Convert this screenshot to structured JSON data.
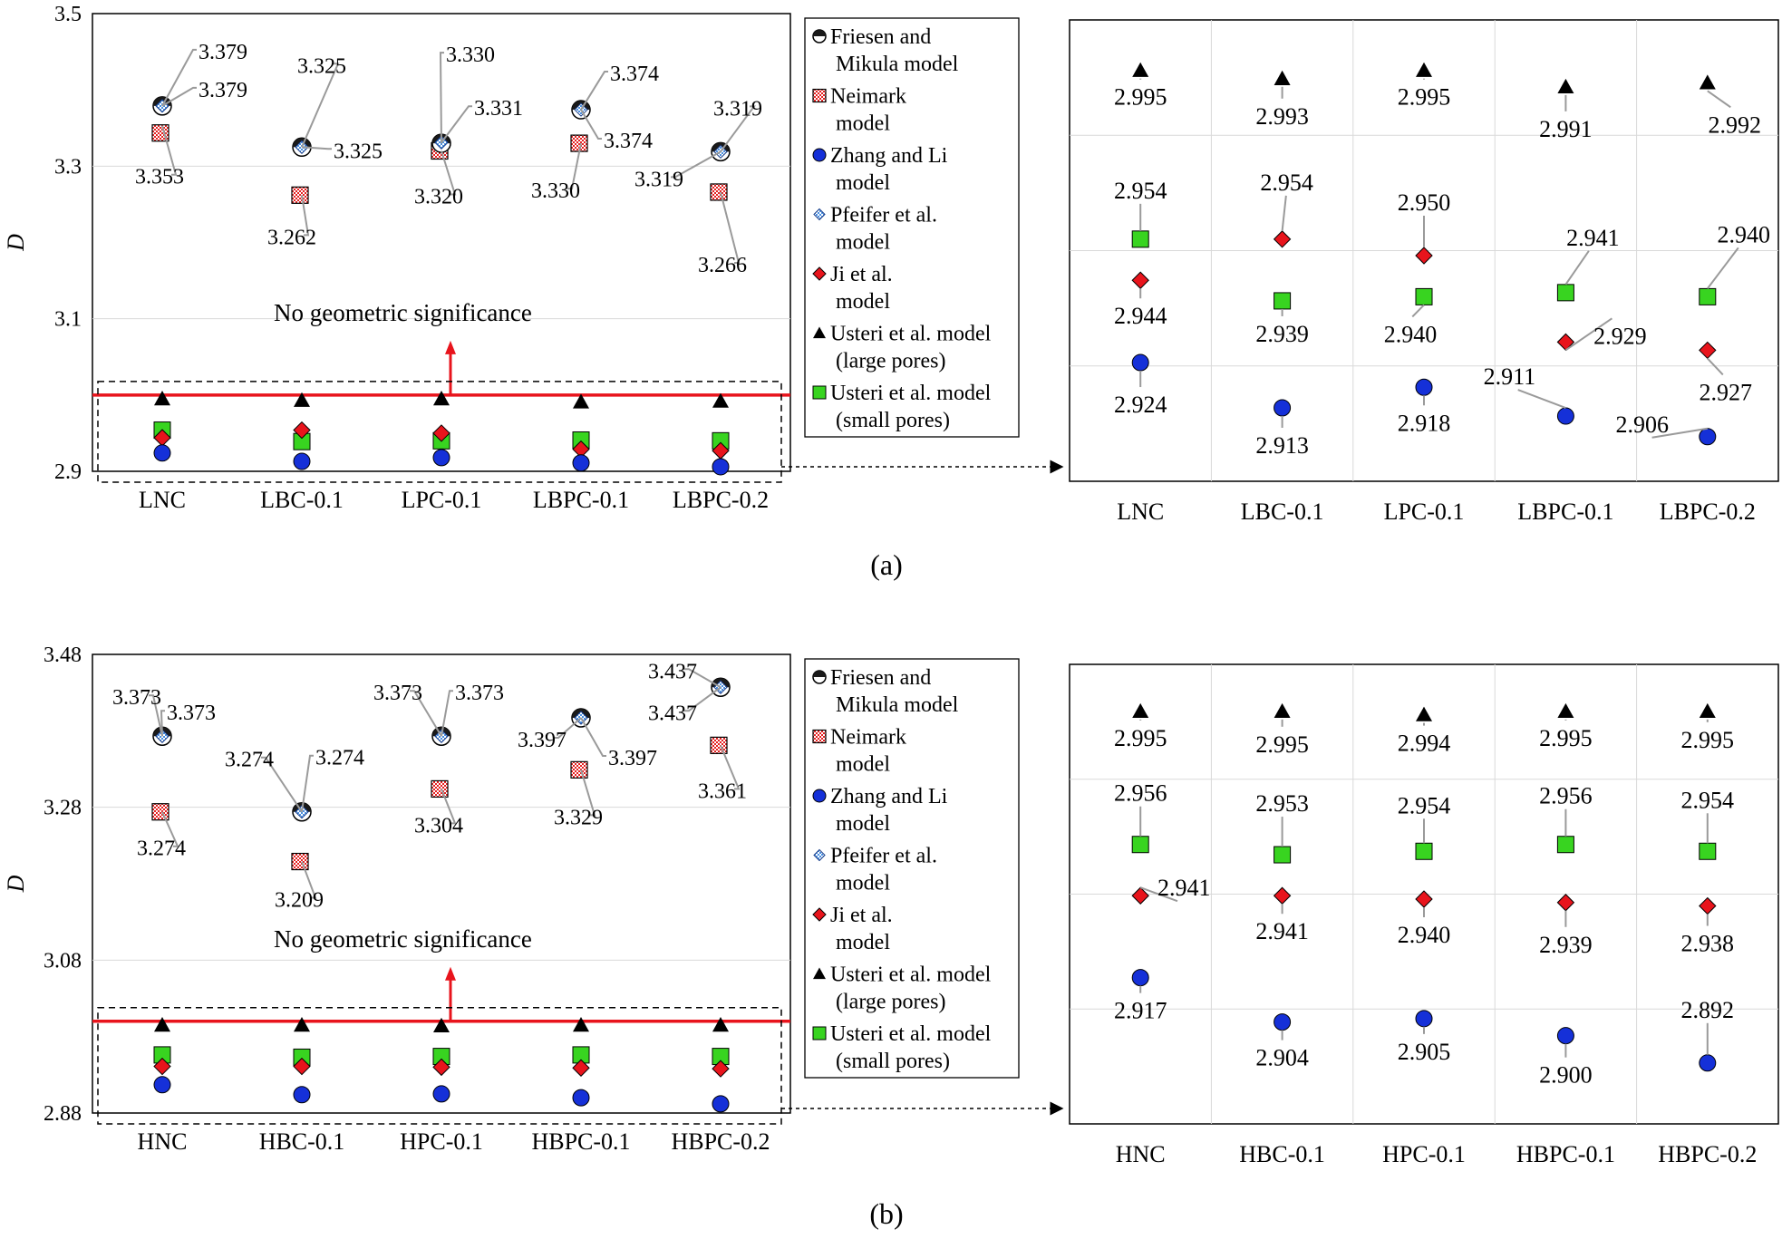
{
  "figure": {
    "marker_colors": {
      "friesen": "#1a1a1a",
      "neimark": "#e62020",
      "zhang": "#1530d8",
      "pfeifer": "#4a90e2",
      "ji": "#e8141c",
      "usteri_large": "#000000",
      "usteri_small": "#38d420",
      "threshold_line": "#e8141c",
      "leader_line": "#9a9a9a"
    },
    "legend": [
      {
        "key": "friesen",
        "icon": "half-filled-circle-icon",
        "lines": [
          "Friesen and",
          "Mikula model"
        ]
      },
      {
        "key": "neimark",
        "icon": "checkered-square-icon",
        "lines": [
          "Neimark",
          "model"
        ]
      },
      {
        "key": "zhang",
        "icon": "blue-circle-icon",
        "lines": [
          "Zhang and Li",
          "model"
        ]
      },
      {
        "key": "pfeifer",
        "icon": "checkered-diamond-icon",
        "lines": [
          "Pfeifer et al.",
          "model"
        ]
      },
      {
        "key": "ji",
        "icon": "red-diamond-icon",
        "lines": [
          "Ji et al.",
          "model"
        ]
      },
      {
        "key": "usteri_large",
        "icon": "black-triangle-icon",
        "lines": [
          "Usteri et al. model",
          "(large pores)"
        ]
      },
      {
        "key": "usteri_small",
        "icon": "green-square-icon",
        "lines": [
          "Usteri et al. model",
          "(small pores)"
        ]
      }
    ]
  },
  "chart_data": [
    {
      "panel": "(a)",
      "type": "scatter",
      "ylabel": "D",
      "ylim": [
        2.9,
        3.5
      ],
      "yticks": [
        "2.9",
        "3.1",
        "3.3",
        "3.5"
      ],
      "categories": [
        "LNC",
        "LBC-0.1",
        "LPC-0.1",
        "LBPC-0.1",
        "LBPC-0.2"
      ],
      "threshold": 3.0,
      "threshold_label": "No geometric significance",
      "series": [
        {
          "key": "friesen",
          "name": "Friesen and Mikula model",
          "values": [
            3.379,
            3.325,
            3.33,
            3.374,
            3.319
          ],
          "labels": [
            "3.379",
            "3.325",
            "3.330",
            "3.374",
            "3.319"
          ]
        },
        {
          "key": "pfeifer",
          "name": "Pfeifer et al. model",
          "values": [
            3.379,
            3.325,
            3.331,
            3.374,
            3.319
          ],
          "labels": [
            "3.379",
            "3.325",
            "3.331",
            "3.374",
            "3.319"
          ]
        },
        {
          "key": "neimark",
          "name": "Neimark model",
          "values": [
            3.353,
            3.262,
            3.32,
            3.33,
            3.266
          ],
          "labels": [
            "3.353",
            "3.262",
            "3.320",
            "3.330",
            "3.266"
          ]
        },
        {
          "key": "usteri_large",
          "name": "Usteri et al. model (large pores)",
          "values": [
            2.995,
            2.993,
            2.995,
            2.991,
            2.992
          ],
          "labels": [
            "2.995",
            "2.993",
            "2.995",
            "2.991",
            "2.992"
          ]
        },
        {
          "key": "usteri_small",
          "name": "Usteri et al. model (small pores)",
          "values": [
            2.954,
            2.939,
            2.94,
            2.941,
            2.94
          ],
          "labels": [
            "2.954",
            "2.939",
            "2.940",
            "2.941",
            "2.940"
          ]
        },
        {
          "key": "ji",
          "name": "Ji et al. model",
          "values": [
            2.944,
            2.954,
            2.95,
            2.929,
            2.927
          ],
          "labels": [
            "2.944",
            "2.954",
            "2.950",
            "2.929",
            "2.927"
          ]
        },
        {
          "key": "zhang",
          "name": "Zhang and Li model",
          "values": [
            2.924,
            2.913,
            2.918,
            2.911,
            2.906
          ],
          "labels": [
            "2.924",
            "2.913",
            "2.918",
            "2.911",
            "2.906"
          ]
        }
      ],
      "zoom_categories": [
        "LNC",
        "LBC-0.1",
        "LPC-0.1",
        "LBPC-0.1",
        "LBPC-0.2"
      ]
    },
    {
      "panel": "(b)",
      "type": "scatter",
      "ylabel": "D",
      "ylim": [
        2.88,
        3.48
      ],
      "yticks": [
        "2.88",
        "3.08",
        "3.28",
        "3.48"
      ],
      "categories": [
        "HNC",
        "HBC-0.1",
        "HPC-0.1",
        "HBPC-0.1",
        "HBPC-0.2"
      ],
      "threshold": 3.0,
      "threshold_label": "No geometric significance",
      "series": [
        {
          "key": "friesen",
          "name": "Friesen and Mikula model",
          "values": [
            3.373,
            3.274,
            3.373,
            3.397,
            3.437
          ],
          "labels": [
            "3.373",
            "3.274",
            "3.373",
            "3.397",
            "3.437"
          ]
        },
        {
          "key": "pfeifer",
          "name": "Pfeifer et al. model",
          "values": [
            3.373,
            3.274,
            3.373,
            3.397,
            3.437
          ],
          "labels": [
            "3.373",
            "3.274",
            "3.373",
            "3.397",
            "3.437"
          ]
        },
        {
          "key": "neimark",
          "name": "Neimark model",
          "values": [
            3.274,
            3.209,
            3.304,
            3.329,
            3.361
          ],
          "labels": [
            "3.274",
            "3.209",
            "3.304",
            "3.329",
            "3.361"
          ]
        },
        {
          "key": "usteri_large",
          "name": "Usteri et al. model (large pores)",
          "values": [
            2.995,
            2.995,
            2.994,
            2.995,
            2.995
          ],
          "labels": [
            "2.995",
            "2.995",
            "2.994",
            "2.995",
            "2.995"
          ]
        },
        {
          "key": "usteri_small",
          "name": "Usteri et al. model (small pores)",
          "values": [
            2.956,
            2.953,
            2.954,
            2.956,
            2.954
          ],
          "labels": [
            "2.956",
            "2.953",
            "2.954",
            "2.956",
            "2.954"
          ]
        },
        {
          "key": "ji",
          "name": "Ji et al. model",
          "values": [
            2.941,
            2.941,
            2.94,
            2.939,
            2.938
          ],
          "labels": [
            "2.941",
            "2.941",
            "2.940",
            "2.939",
            "2.938"
          ]
        },
        {
          "key": "zhang",
          "name": "Zhang and Li model",
          "values": [
            2.917,
            2.904,
            2.905,
            2.9,
            2.892
          ],
          "labels": [
            "2.917",
            "2.904",
            "2.905",
            "2.900",
            "2.892"
          ]
        }
      ],
      "zoom_categories": [
        "HNC",
        "HBC-0.1",
        "HPC-0.1",
        "HBPC-0.1",
        "HBPC-0.2"
      ]
    }
  ]
}
